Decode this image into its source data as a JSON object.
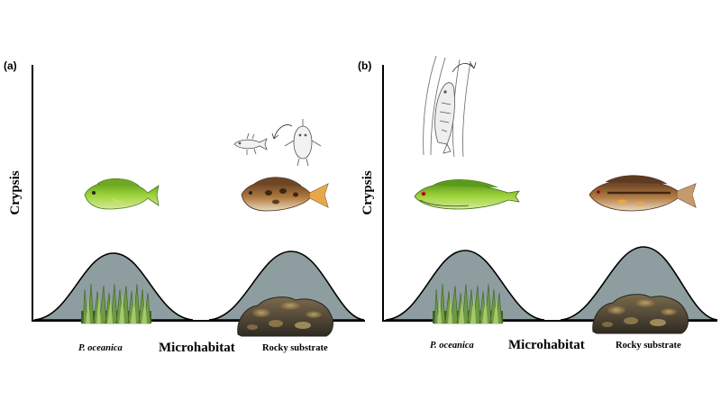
{
  "panels": [
    {
      "label": "(a)",
      "y_axis_label": "Crypsis",
      "x_axis_label": "Microhabitat",
      "habitats": [
        {
          "name": "P. oceanica",
          "italic": true
        },
        {
          "name": "Rocky substrate",
          "italic": false
        }
      ]
    },
    {
      "label": "(b)",
      "y_axis_label": "Crypsis",
      "x_axis_label": "Microhabitat",
      "habitats": [
        {
          "name": "P. oceanica",
          "italic": true
        },
        {
          "name": "Rocky substrate",
          "italic": false
        }
      ]
    }
  ],
  "colors": {
    "curve_fill": "#8e9ea0",
    "seagrass": "#5d8a3a",
    "rock": "#5a4a36",
    "green_fish": "#7fbf2a",
    "brown_fish": "#8a5a34"
  },
  "icons": [
    "seagrass-icon",
    "rock-icon",
    "green-fish-icon",
    "brown-fish-icon",
    "fish-sketch-icon"
  ]
}
